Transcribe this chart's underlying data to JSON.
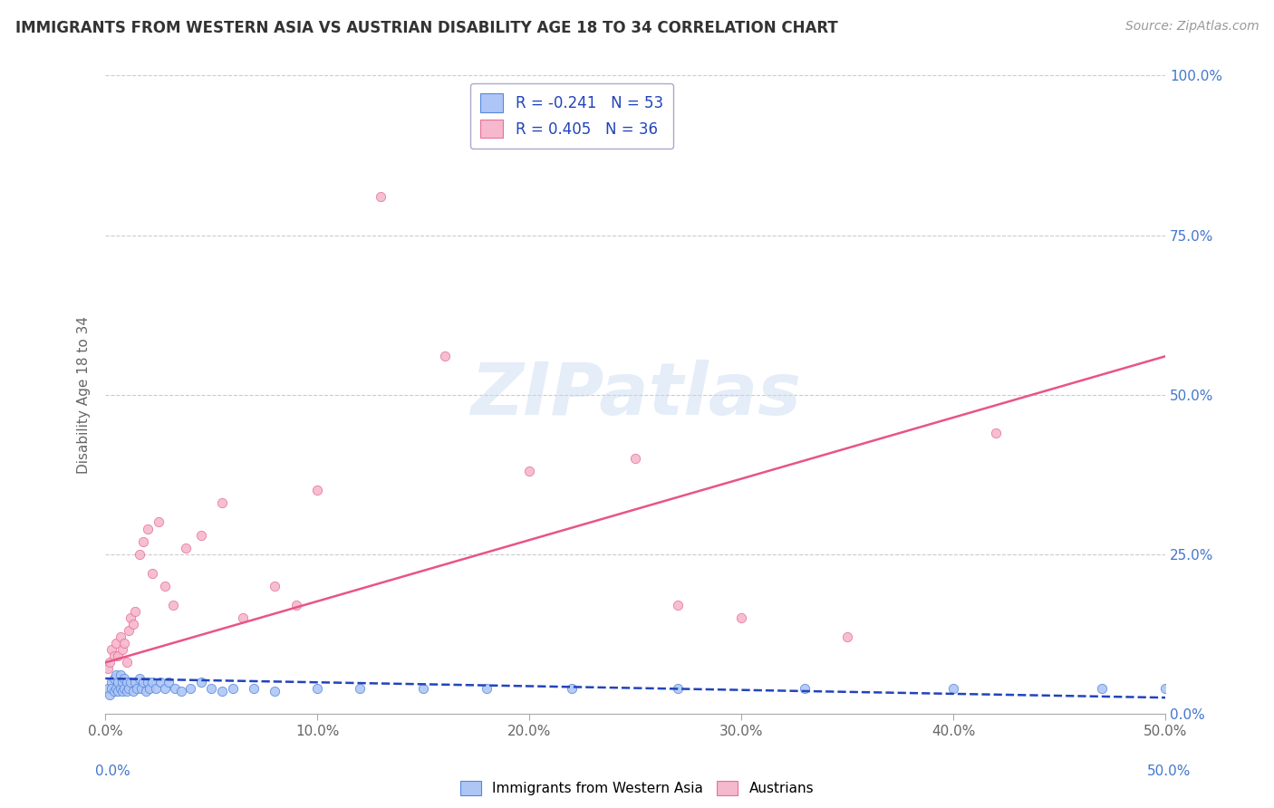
{
  "title": "IMMIGRANTS FROM WESTERN ASIA VS AUSTRIAN DISABILITY AGE 18 TO 34 CORRELATION CHART",
  "source": "Source: ZipAtlas.com",
  "ylabel": "Disability Age 18 to 34",
  "legend_label1": "Immigrants from Western Asia",
  "legend_label2": "Austrians",
  "R1": -0.241,
  "N1": 53,
  "R2": 0.405,
  "N2": 36,
  "color1": "#aec6f5",
  "color2": "#f5b8cc",
  "edge_color1": "#5588dd",
  "edge_color2": "#e8709a",
  "line_color1": "#2244bb",
  "line_color2": "#e85585",
  "tick_color": "#4477cc",
  "xlim": [
    0.0,
    0.5
  ],
  "ylim": [
    0.0,
    1.0
  ],
  "xticks": [
    0.0,
    0.1,
    0.2,
    0.3,
    0.4,
    0.5
  ],
  "xtick_labels": [
    "0.0%",
    "10.0%",
    "20.0%",
    "30.0%",
    "40.0%",
    "50.0%"
  ],
  "yticks": [
    0.0,
    0.25,
    0.5,
    0.75,
    1.0
  ],
  "ytick_labels": [
    "0.0%",
    "25.0%",
    "50.0%",
    "75.0%",
    "100.0%"
  ],
  "background_color": "#ffffff",
  "blue_scatter_x": [
    0.001,
    0.002,
    0.003,
    0.003,
    0.004,
    0.004,
    0.005,
    0.005,
    0.006,
    0.006,
    0.007,
    0.007,
    0.008,
    0.008,
    0.009,
    0.009,
    0.01,
    0.01,
    0.011,
    0.012,
    0.013,
    0.014,
    0.015,
    0.016,
    0.017,
    0.018,
    0.019,
    0.02,
    0.021,
    0.022,
    0.024,
    0.026,
    0.028,
    0.03,
    0.033,
    0.036,
    0.04,
    0.045,
    0.05,
    0.055,
    0.06,
    0.07,
    0.08,
    0.1,
    0.12,
    0.15,
    0.18,
    0.22,
    0.27,
    0.33,
    0.4,
    0.47,
    0.5
  ],
  "blue_scatter_y": [
    0.04,
    0.03,
    0.05,
    0.04,
    0.035,
    0.055,
    0.04,
    0.06,
    0.035,
    0.05,
    0.04,
    0.06,
    0.035,
    0.05,
    0.04,
    0.055,
    0.035,
    0.05,
    0.04,
    0.05,
    0.035,
    0.05,
    0.04,
    0.055,
    0.04,
    0.05,
    0.035,
    0.05,
    0.04,
    0.05,
    0.04,
    0.05,
    0.04,
    0.05,
    0.04,
    0.035,
    0.04,
    0.05,
    0.04,
    0.035,
    0.04,
    0.04,
    0.035,
    0.04,
    0.04,
    0.04,
    0.04,
    0.04,
    0.04,
    0.04,
    0.04,
    0.04,
    0.04
  ],
  "pink_scatter_x": [
    0.001,
    0.002,
    0.003,
    0.004,
    0.005,
    0.006,
    0.007,
    0.008,
    0.009,
    0.01,
    0.011,
    0.012,
    0.013,
    0.014,
    0.016,
    0.018,
    0.02,
    0.022,
    0.025,
    0.028,
    0.032,
    0.038,
    0.045,
    0.055,
    0.065,
    0.08,
    0.1,
    0.13,
    0.16,
    0.2,
    0.25,
    0.3,
    0.35,
    0.42,
    0.27,
    0.09
  ],
  "pink_scatter_y": [
    0.07,
    0.08,
    0.1,
    0.09,
    0.11,
    0.09,
    0.12,
    0.1,
    0.11,
    0.08,
    0.13,
    0.15,
    0.14,
    0.16,
    0.25,
    0.27,
    0.29,
    0.22,
    0.3,
    0.2,
    0.17,
    0.26,
    0.28,
    0.33,
    0.15,
    0.2,
    0.35,
    0.81,
    0.56,
    0.38,
    0.4,
    0.15,
    0.12,
    0.44,
    0.17,
    0.17
  ],
  "blue_line_x": [
    0.0,
    0.5
  ],
  "blue_line_y": [
    0.055,
    0.025
  ],
  "pink_line_x": [
    0.0,
    0.5
  ],
  "pink_line_y": [
    0.08,
    0.56
  ]
}
